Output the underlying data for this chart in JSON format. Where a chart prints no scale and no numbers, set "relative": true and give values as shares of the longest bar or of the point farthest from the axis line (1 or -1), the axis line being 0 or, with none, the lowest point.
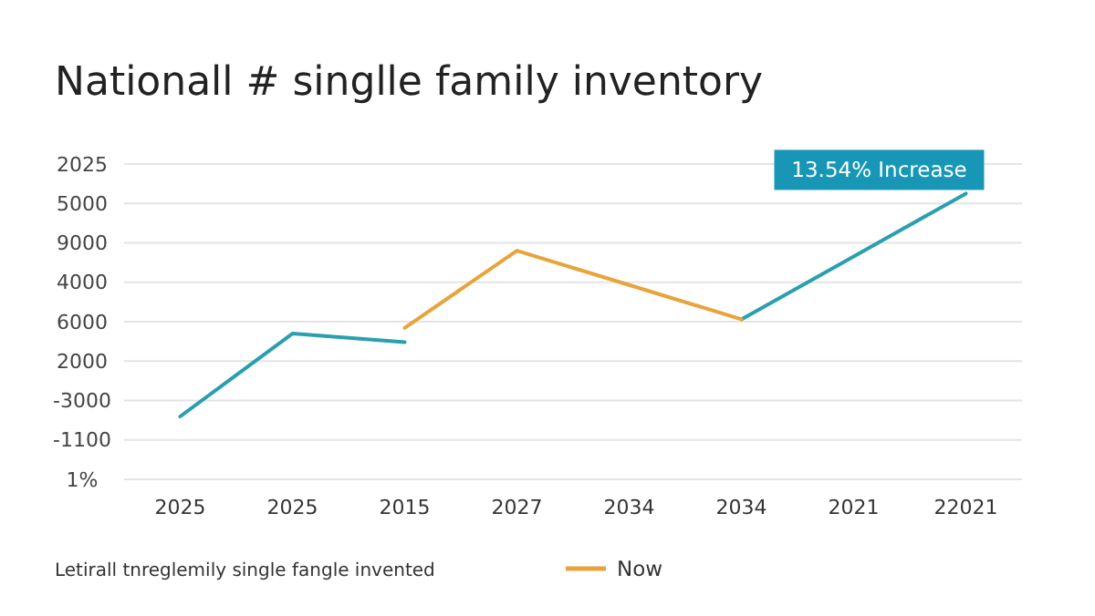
{
  "chart_data": {
    "type": "line",
    "title": "Nationall # singlle family inventory",
    "categories": [
      "2025",
      "2025",
      "2015",
      "2027",
      "2034",
      "2034",
      "2021",
      "22021"
    ],
    "y_categories": [
      "2025",
      "5000",
      "9000",
      "4000",
      "6000",
      "2000",
      "-3000",
      "-1100",
      "1%"
    ],
    "relative": true,
    "grid": "y",
    "legend": "bottom",
    "line_style": "solid",
    "marker": "none",
    "series": [
      {
        "color": "#2a9fb0",
        "values": [
          0.22,
          0.51,
          0.48,
          null,
          null,
          0.56,
          0.78,
          1
        ]
      },
      {
        "name": "Now",
        "color": "#e8a33a",
        "values": [
          null,
          null,
          0.53,
          0.8,
          0.68,
          0.56,
          null,
          null
        ]
      }
    ],
    "annotations": [
      {
        "text": "13.54% Increase",
        "x": "22021",
        "y": 1
      },
      "Letirall tnreglemily single fangle invented"
    ]
  }
}
